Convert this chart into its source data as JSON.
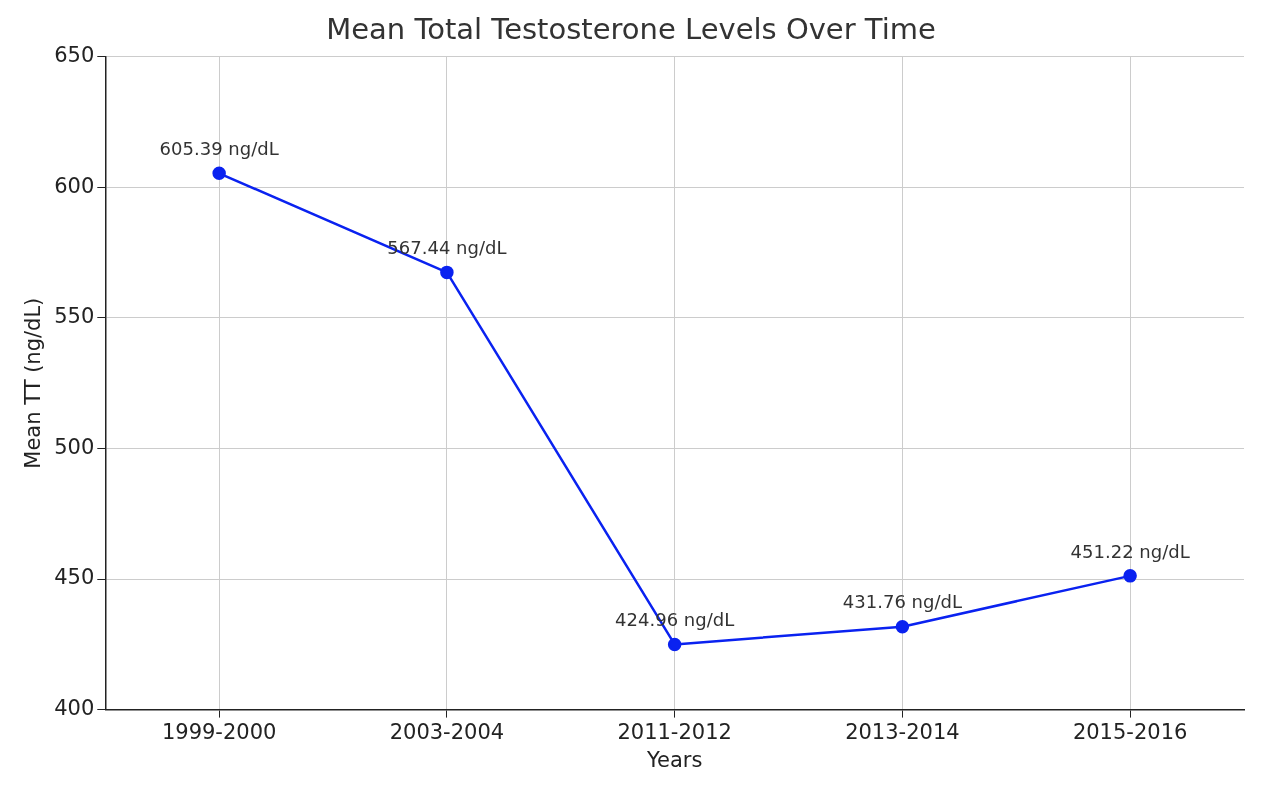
{
  "chart_data": {
    "type": "line",
    "title": "Mean Total Testosterone Levels Over Time",
    "xlabel": "Years",
    "ylabel": "Mean TT (ng/dL)",
    "categories": [
      "1999-2000",
      "2003-2004",
      "2011-2012",
      "2013-2014",
      "2015-2016"
    ],
    "series": [
      {
        "color": "#0a22f0",
        "values": [
          605.39,
          567.44,
          424.96,
          431.76,
          451.22
        ],
        "value_labels": [
          "605.39 ng/dL",
          "567.44 ng/dL",
          "424.96 ng/dL",
          "431.76 ng/dL",
          "451.22 ng/dL"
        ]
      }
    ],
    "ylim": [
      400,
      650
    ],
    "yticks": [
      400,
      450,
      500,
      550,
      600,
      650
    ],
    "grid": true,
    "legend": false,
    "marker": "circle",
    "line_style": "solid"
  }
}
